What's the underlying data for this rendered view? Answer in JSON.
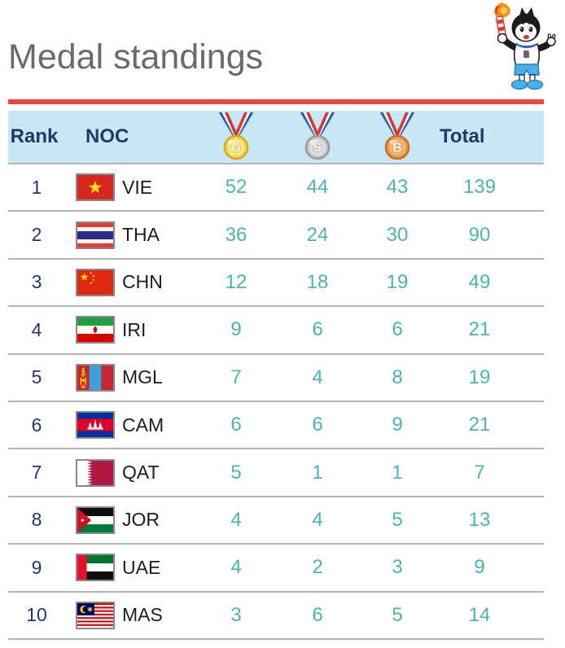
{
  "page": {
    "title": "Medal standings"
  },
  "mascot": {
    "icon": "games-mascot-torch-icon"
  },
  "colors": {
    "accent_red": "#ee4540",
    "header_bg": "#c8e7f6",
    "header_text": "#21376b",
    "value_teal": "#4ab6ab",
    "title_gray": "#6a6a6a",
    "row_divider": "#b5b5b5",
    "flag_border": "#8a8a8a"
  },
  "table": {
    "headers": {
      "rank": "Rank",
      "noc": "NOC",
      "gold": {
        "icon": "gold-medal-icon",
        "letter": "G"
      },
      "silver": {
        "icon": "silver-medal-icon",
        "letter": "S"
      },
      "bronze": {
        "icon": "bronze-medal-icon",
        "letter": "B"
      },
      "total": "Total"
    },
    "rows": [
      {
        "rank": 1,
        "noc": "VIE",
        "flag": "vietnam",
        "gold": 52,
        "silver": 44,
        "bronze": 43,
        "total": 139
      },
      {
        "rank": 2,
        "noc": "THA",
        "flag": "thailand",
        "gold": 36,
        "silver": 24,
        "bronze": 30,
        "total": 90
      },
      {
        "rank": 3,
        "noc": "CHN",
        "flag": "china",
        "gold": 12,
        "silver": 18,
        "bronze": 19,
        "total": 49
      },
      {
        "rank": 4,
        "noc": "IRI",
        "flag": "iran",
        "gold": 9,
        "silver": 6,
        "bronze": 6,
        "total": 21
      },
      {
        "rank": 5,
        "noc": "MGL",
        "flag": "mongolia",
        "gold": 7,
        "silver": 4,
        "bronze": 8,
        "total": 19
      },
      {
        "rank": 6,
        "noc": "CAM",
        "flag": "cambodia",
        "gold": 6,
        "silver": 6,
        "bronze": 9,
        "total": 21
      },
      {
        "rank": 7,
        "noc": "QAT",
        "flag": "qatar",
        "gold": 5,
        "silver": 1,
        "bronze": 1,
        "total": 7
      },
      {
        "rank": 8,
        "noc": "JOR",
        "flag": "jordan",
        "gold": 4,
        "silver": 4,
        "bronze": 5,
        "total": 13
      },
      {
        "rank": 9,
        "noc": "UAE",
        "flag": "uae",
        "gold": 4,
        "silver": 2,
        "bronze": 3,
        "total": 9
      },
      {
        "rank": 10,
        "noc": "MAS",
        "flag": "malaysia",
        "gold": 3,
        "silver": 6,
        "bronze": 5,
        "total": 14
      }
    ]
  }
}
